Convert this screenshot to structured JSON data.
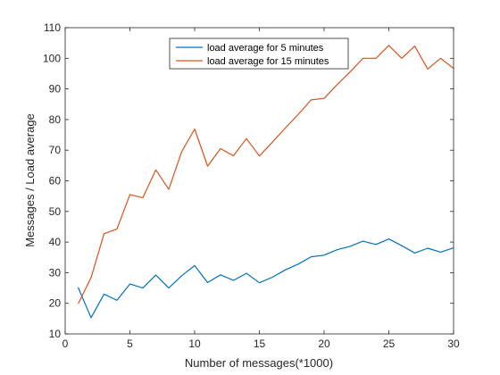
{
  "chart_data": {
    "type": "line",
    "title": "",
    "xlabel": "Number of messages(*1000)",
    "ylabel": "Messages / Load average",
    "xlim": [
      0,
      30
    ],
    "ylim": [
      10,
      110
    ],
    "xticks": [
      0,
      5,
      10,
      15,
      20,
      25,
      30
    ],
    "yticks": [
      10,
      20,
      30,
      40,
      50,
      60,
      70,
      80,
      90,
      100,
      110
    ],
    "grid": false,
    "legend_position": "top-center",
    "x": [
      1,
      2,
      3,
      4,
      5,
      6,
      7,
      8,
      9,
      10,
      11,
      12,
      13,
      14,
      15,
      16,
      17,
      18,
      19,
      20,
      21,
      22,
      23,
      24,
      25,
      26,
      27,
      28,
      29,
      30
    ],
    "series": [
      {
        "name": "load average for 5 minutes",
        "color": "#0072BD",
        "values": [
          25.2,
          15.3,
          23.0,
          21.0,
          26.3,
          25.0,
          29.2,
          25.0,
          29.0,
          32.3,
          26.8,
          29.3,
          27.5,
          29.8,
          26.7,
          28.5,
          30.9,
          32.8,
          35.2,
          35.7,
          37.5,
          38.6,
          40.3,
          39.2,
          41.0,
          38.8,
          36.4,
          38.0,
          36.7,
          38.1
        ]
      },
      {
        "name": "load average for 15 minutes",
        "color": "#D95319",
        "values": [
          19.8,
          28.4,
          42.7,
          44.3,
          55.5,
          54.5,
          63.6,
          57.2,
          69.5,
          76.9,
          64.8,
          70.5,
          68.2,
          73.8,
          68.1,
          72.6,
          77.2,
          81.7,
          86.4,
          86.9,
          91.4,
          95.5,
          100.0,
          100.0,
          104.2,
          100.0,
          104.0,
          96.5,
          100.0,
          96.7
        ]
      }
    ]
  }
}
